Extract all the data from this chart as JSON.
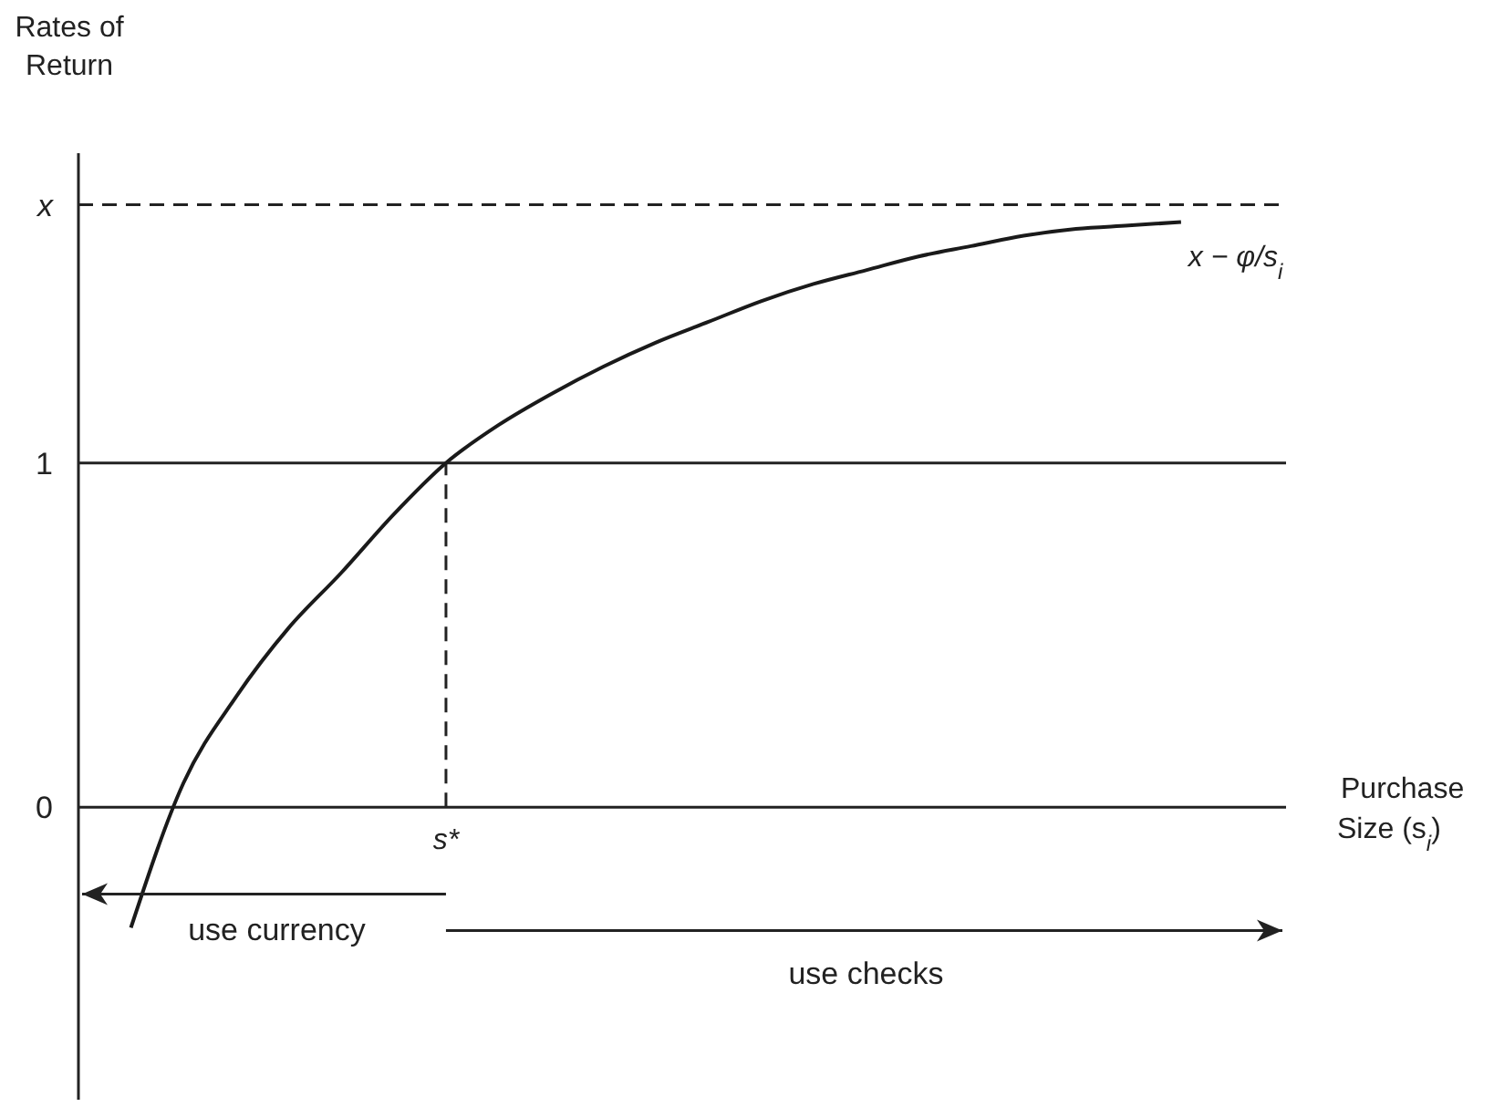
{
  "chart_data": {
    "type": "line",
    "ylabel": "Rates of Return",
    "xlabel": "Purchase Size (s$_{i}$)",
    "categories": [
      null,
      null,
      null,
      null,
      null,
      null,
      null,
      "s*",
      null,
      null,
      null,
      null,
      null,
      null,
      null,
      null,
      null,
      null,
      null,
      null,
      null,
      null,
      null,
      null
    ],
    "series": [
      {
        "name": "x − φ/s$_{i}$",
        "color": "#1a1a1a",
        "values": [
          null,
          -0.35,
          0.07,
          0.32,
          0.52,
          0.68,
          0.85,
          1.0,
          1.11,
          1.2,
          1.28,
          1.35,
          1.41,
          1.47,
          1.52,
          1.56,
          1.6,
          1.63,
          1.66,
          1.68,
          1.69,
          1.7,
          null,
          null
        ]
      }
    ],
    "ylim": [
      -0.85,
      1.9
    ],
    "yticks": [
      0,
      1,
      {
        "value": 1.75,
        "label": "x"
      }
    ],
    "ref_lines": [
      {
        "axis": "y",
        "value": 1,
        "line_style": "solid"
      },
      {
        "axis": "y",
        "value": 1.75,
        "line_style": "dashed"
      },
      {
        "axis": "x",
        "value": "s*",
        "line_style": "dashed"
      }
    ],
    "annotations": [
      "use currency",
      "use checks"
    ],
    "marker": "none",
    "line_style": "solid"
  }
}
